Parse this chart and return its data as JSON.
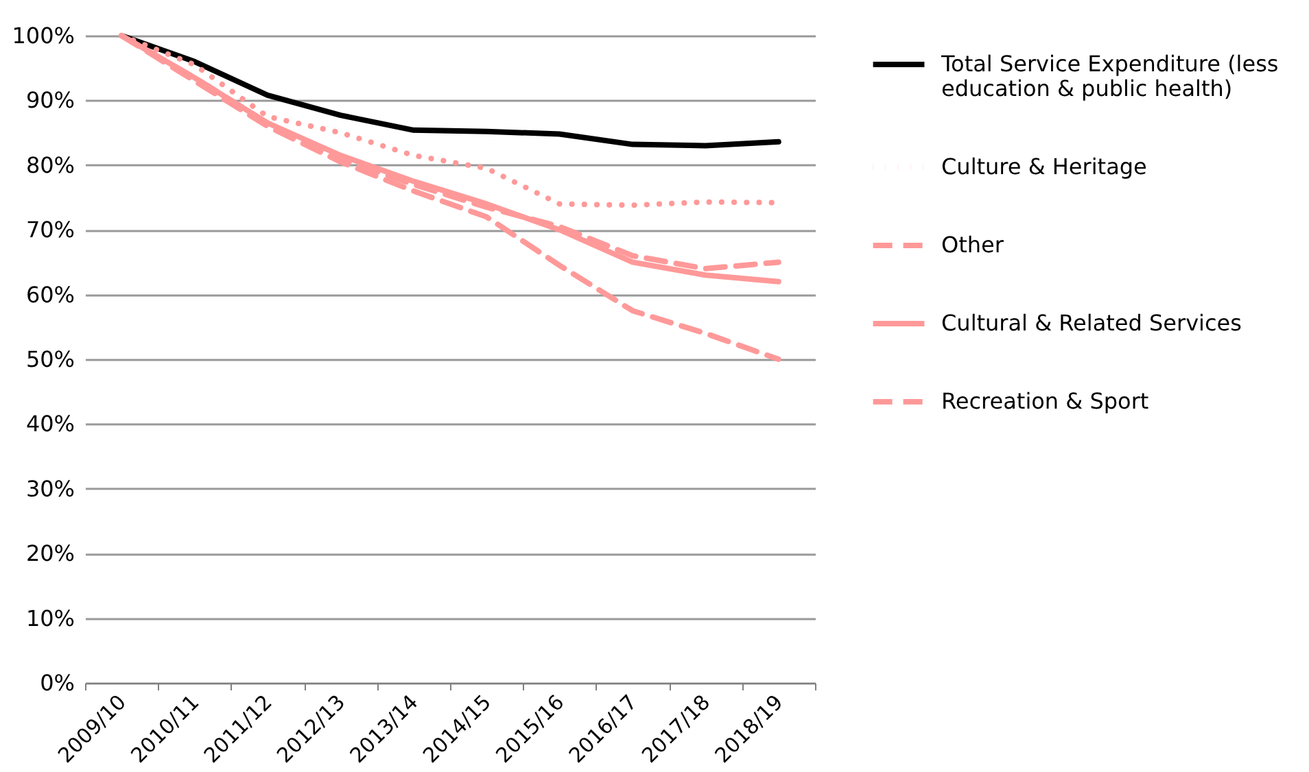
{
  "chart_data": {
    "type": "line",
    "categories": [
      "2009/10",
      "2010/11",
      "2011/12",
      "2012/13",
      "2013/14",
      "2014/15",
      "2015/16",
      "2016/17",
      "2017/18",
      "2018/19"
    ],
    "series": [
      {
        "name": "Total Service Expenditure (less education & public health)",
        "color": "#000000",
        "line_style": "solid",
        "values": [
          100,
          96,
          90.8,
          87.7,
          85.4,
          85.2,
          84.8,
          83.2,
          83.0,
          83.6
        ]
      },
      {
        "name": "Culture & Heritage",
        "color": "#ff9999",
        "line_style": "dotted",
        "values": [
          100,
          95.5,
          87.5,
          85,
          81.5,
          79.5,
          74,
          73.8,
          74.3,
          74.2
        ]
      },
      {
        "name": "Other",
        "color": "#ff9999",
        "line_style": "dashed",
        "values": [
          100,
          93.5,
          86.5,
          81,
          77,
          73.5,
          70.5,
          66,
          64,
          65
        ]
      },
      {
        "name": "Cultural & Related Services",
        "color": "#ff9999",
        "line_style": "solid",
        "values": [
          100,
          93.5,
          86.5,
          81.5,
          77.5,
          74,
          70,
          65,
          63,
          62
        ]
      },
      {
        "name": "Recreation & Sport",
        "color": "#ff9999",
        "line_style": "dashed",
        "values": [
          100,
          93,
          86,
          80.5,
          76,
          72,
          64.5,
          57.5,
          54,
          50
        ]
      }
    ],
    "ylim": [
      0,
      100
    ],
    "yticks": [
      {
        "value": 0,
        "label": "0%"
      },
      {
        "value": 10,
        "label": "10%"
      },
      {
        "value": 20,
        "label": "20%"
      },
      {
        "value": 30,
        "label": "30%"
      },
      {
        "value": 40,
        "label": "40%"
      },
      {
        "value": 50,
        "label": "50%"
      },
      {
        "value": 60,
        "label": "60%"
      },
      {
        "value": 70,
        "label": "70%"
      },
      {
        "value": 80,
        "label": "80%"
      },
      {
        "value": 90,
        "label": "90%"
      },
      {
        "value": 100,
        "label": "100%"
      }
    ],
    "grid": "y",
    "legend": "right",
    "marker": "none"
  }
}
